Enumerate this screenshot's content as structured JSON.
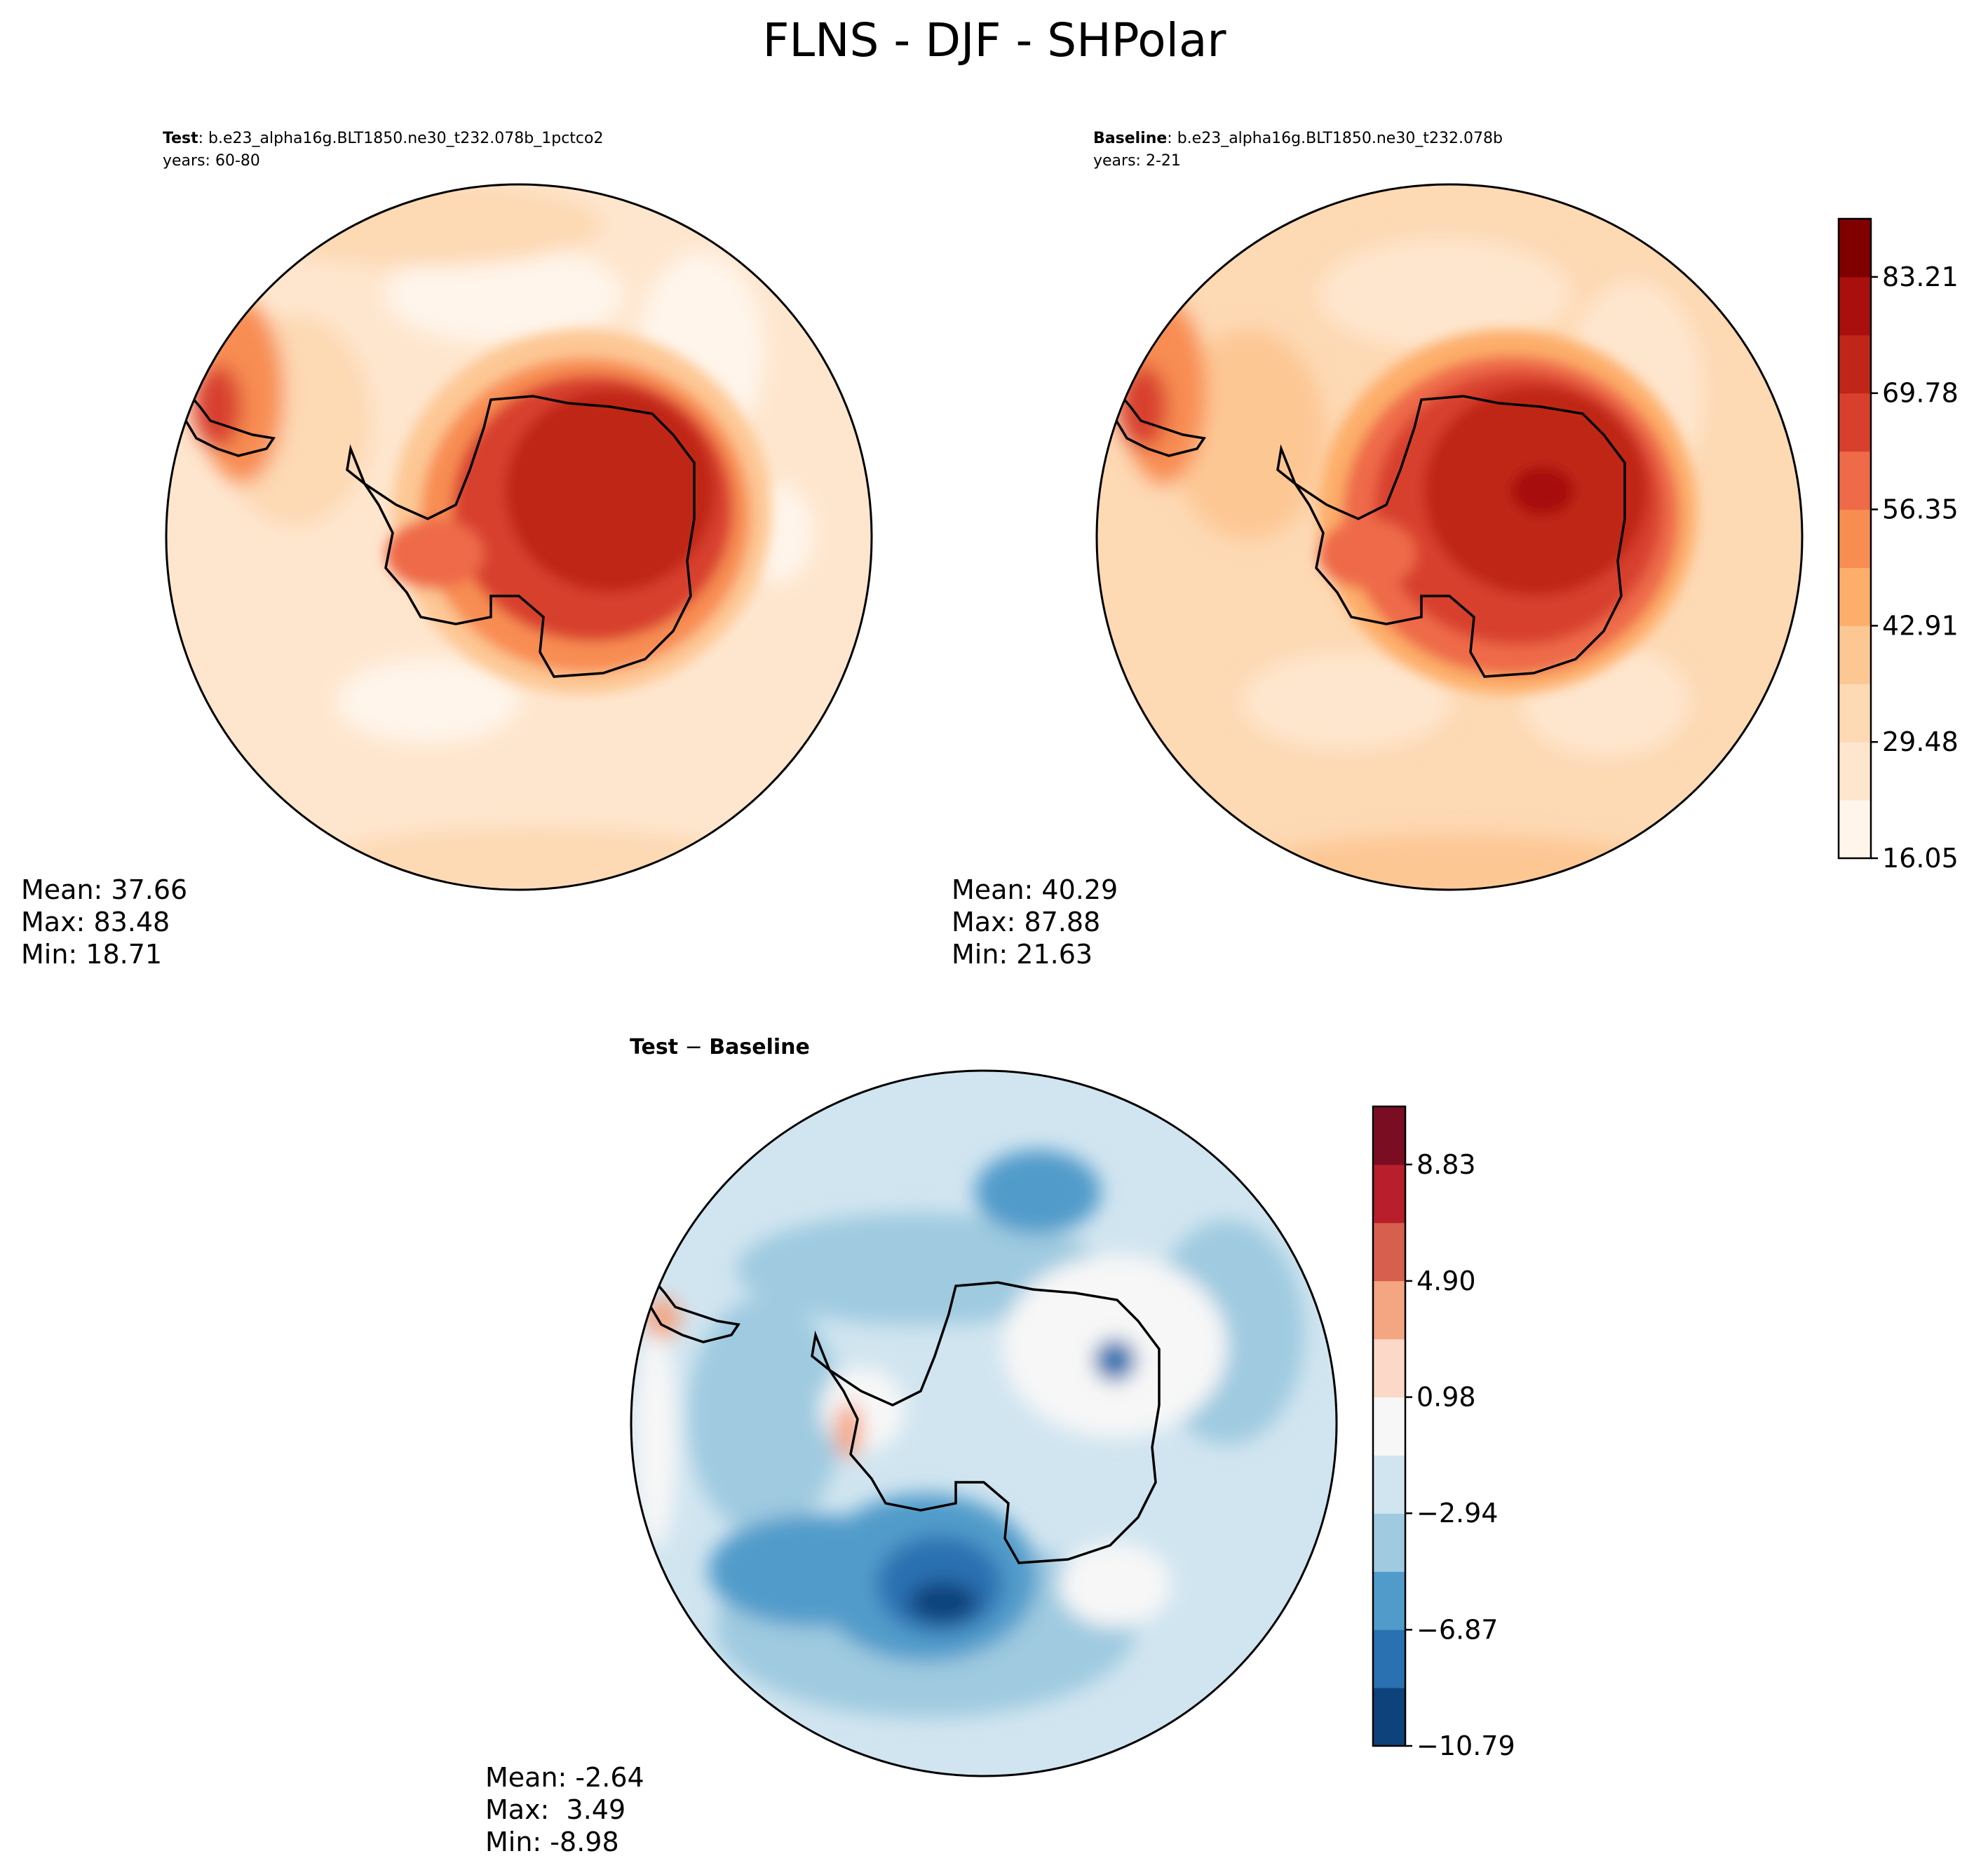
{
  "title": "FLNS - DJF - SHPolar",
  "colors": {
    "seq": [
      "#fff5eb",
      "#fee6ce",
      "#fdd9b4",
      "#fdc794",
      "#fdae6b",
      "#f88d52",
      "#ee6a48",
      "#d8402d",
      "#c02519",
      "#a80f0d",
      "#800000"
    ],
    "div": [
      "#0e427b",
      "#2a71b1",
      "#519bca",
      "#9fcae0",
      "#d1e5f0",
      "#f7f7f7",
      "#fbd8c7",
      "#f4a582",
      "#d6604d",
      "#b81e2b",
      "#7b0d22"
    ]
  },
  "chart_data": [
    {
      "type": "heatmap",
      "panel": "test",
      "header_bold": "Test",
      "header_text": ": b.e23_alpha16g.BLT1850.ne30_t232.078b_1pctco2",
      "years": "years: 60-80",
      "projection": "south-polar-stereographic",
      "stats": {
        "mean": "Mean: 37.66",
        "max": "Max: 83.48",
        "min": "Min: 18.71"
      },
      "values": {
        "mean": 37.66,
        "max": 83.48,
        "min": 18.71
      }
    },
    {
      "type": "heatmap",
      "panel": "baseline",
      "header_bold": "Baseline",
      "header_text": ": b.e23_alpha16g.BLT1850.ne30_t232.078b",
      "years": "years: 2-21",
      "projection": "south-polar-stereographic",
      "stats": {
        "mean": "Mean: 40.29",
        "max": "Max: 87.88",
        "min": "Min: 21.63"
      },
      "values": {
        "mean": 40.29,
        "max": 87.88,
        "min": 21.63
      },
      "colorbar": {
        "ticks": [
          "16.05",
          "29.48",
          "42.91",
          "56.35",
          "69.78",
          "83.21"
        ],
        "range": [
          16.05,
          89.93
        ],
        "levels": 11,
        "cmap": "seq"
      }
    },
    {
      "type": "heatmap",
      "panel": "difference",
      "header_bold": "Test",
      "header_text": " − ",
      "header_bold2": "Baseline",
      "projection": "south-polar-stereographic",
      "stats": {
        "mean": "Mean: -2.64",
        "max": "Max:  3.49",
        "min": "Min: -8.98"
      },
      "values": {
        "mean": -2.64,
        "max": 3.49,
        "min": -8.98
      },
      "colorbar": {
        "ticks": [
          "−10.79",
          "−6.87",
          "−2.94",
          "0.98",
          "4.90",
          "8.83"
        ],
        "range": [
          -10.79,
          10.79
        ],
        "levels": 11,
        "cmap": "div"
      }
    }
  ]
}
